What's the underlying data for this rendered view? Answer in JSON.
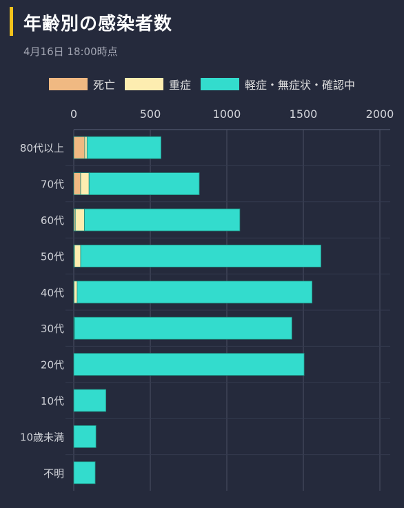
{
  "header": {
    "title": "年齢別の感染者数",
    "subtitle": "4月16日 18:00時点"
  },
  "colors": {
    "background": "#252a3c",
    "accent": "#f2c21b",
    "gridline": "#4a5064",
    "axis_text": "#d0d2d8",
    "bar_stroke": "#1f8a7c"
  },
  "chart_data": {
    "type": "bar",
    "orientation": "horizontal",
    "stacked": true,
    "title": "年齢別の感染者数",
    "subtitle": "4月16日 18:00時点",
    "categories": [
      "80代以上",
      "70代",
      "60代",
      "50代",
      "40代",
      "30代",
      "20代",
      "10代",
      "10歳未満",
      "不明"
    ],
    "series": [
      {
        "name": "死亡",
        "color": "#f0b982",
        "values": [
          72,
          45,
          10,
          5,
          2,
          2,
          0,
          0,
          0,
          0
        ]
      },
      {
        "name": "重症",
        "color": "#fdedb0",
        "values": [
          15,
          55,
          60,
          40,
          20,
          3,
          0,
          0,
          0,
          0
        ]
      },
      {
        "name": "軽症・無症状・確認中",
        "color": "#33dccd",
        "values": [
          483,
          720,
          1015,
          1570,
          1535,
          1420,
          1505,
          210,
          145,
          140
        ]
      }
    ],
    "xlim": [
      0,
      2000
    ],
    "xticks": [
      "0",
      "500",
      "1000",
      "1500",
      "2000"
    ],
    "grid": true,
    "legend_position": "top-center"
  }
}
